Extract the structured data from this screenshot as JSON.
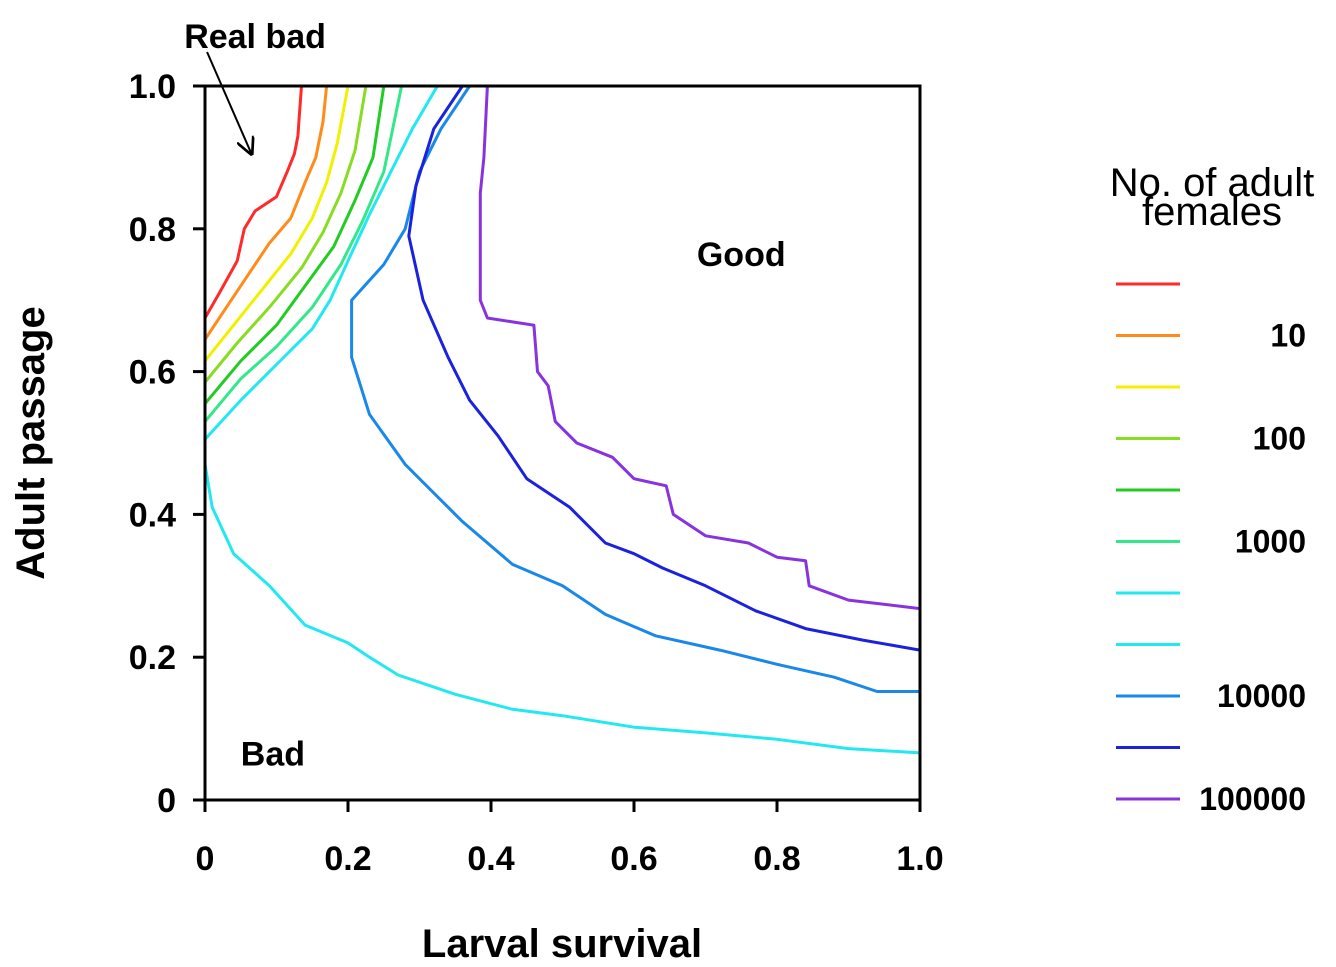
{
  "chart_data": {
    "type": "line",
    "subtype": "contour",
    "xlabel": "Larval survival",
    "ylabel": "Adult passage",
    "xlim": [
      0,
      1.0
    ],
    "ylim": [
      0,
      1.0
    ],
    "x_ticks": [
      0,
      0.2,
      0.4,
      0.6,
      0.8,
      1.0
    ],
    "x_tick_labels": [
      "0",
      "0.2",
      "0.4",
      "0.6",
      "0.8",
      "1.0"
    ],
    "y_ticks": [
      0,
      0.2,
      0.4,
      0.6,
      0.8,
      1.0
    ],
    "y_tick_labels": [
      "0",
      "0.2",
      "0.4",
      "0.6",
      "0.8",
      "1.0"
    ],
    "grid": false,
    "legend": {
      "title_line1": "No. of adult",
      "title_line2": "females",
      "placement": "right"
    },
    "annotations": [
      {
        "text": "Real bad",
        "x": 0.07,
        "y": 1.07,
        "arrow_to": [
          0.065,
          0.905
        ]
      },
      {
        "text": "Good",
        "x": 0.75,
        "y": 0.765
      },
      {
        "text": "Bad",
        "x": 0.095,
        "y": 0.065
      }
    ],
    "series": [
      {
        "label": "",
        "color": "#ff2a2a",
        "points": [
          [
            0,
            0.675
          ],
          [
            0.02,
            0.71
          ],
          [
            0.045,
            0.755
          ],
          [
            0.055,
            0.8
          ],
          [
            0.07,
            0.825
          ],
          [
            0.1,
            0.845
          ],
          [
            0.115,
            0.88
          ],
          [
            0.125,
            0.905
          ],
          [
            0.13,
            0.93
          ],
          [
            0.132,
            0.96
          ],
          [
            0.135,
            1.0
          ]
        ]
      },
      {
        "label": "10",
        "color": "#ff8c1a",
        "points": [
          [
            0,
            0.645
          ],
          [
            0.03,
            0.69
          ],
          [
            0.06,
            0.735
          ],
          [
            0.09,
            0.78
          ],
          [
            0.12,
            0.815
          ],
          [
            0.14,
            0.865
          ],
          [
            0.155,
            0.9
          ],
          [
            0.165,
            0.95
          ],
          [
            0.17,
            1.0
          ]
        ]
      },
      {
        "label": "",
        "color": "#f0f000",
        "points": [
          [
            0,
            0.615
          ],
          [
            0.04,
            0.665
          ],
          [
            0.08,
            0.715
          ],
          [
            0.12,
            0.765
          ],
          [
            0.15,
            0.815
          ],
          [
            0.17,
            0.865
          ],
          [
            0.185,
            0.92
          ],
          [
            0.2,
            1.0
          ]
        ]
      },
      {
        "label": "100",
        "color": "#88dd22",
        "points": [
          [
            0,
            0.585
          ],
          [
            0.045,
            0.64
          ],
          [
            0.09,
            0.69
          ],
          [
            0.135,
            0.745
          ],
          [
            0.165,
            0.795
          ],
          [
            0.19,
            0.85
          ],
          [
            0.21,
            0.91
          ],
          [
            0.225,
            1.0
          ]
        ]
      },
      {
        "label": "",
        "color": "#22cc22",
        "points": [
          [
            0,
            0.555
          ],
          [
            0.05,
            0.615
          ],
          [
            0.1,
            0.665
          ],
          [
            0.14,
            0.72
          ],
          [
            0.18,
            0.775
          ],
          [
            0.21,
            0.84
          ],
          [
            0.235,
            0.9
          ],
          [
            0.25,
            1.0
          ]
        ]
      },
      {
        "label": "1000",
        "color": "#33e888",
        "points": [
          [
            0,
            0.53
          ],
          [
            0.05,
            0.59
          ],
          [
            0.1,
            0.635
          ],
          [
            0.15,
            0.69
          ],
          [
            0.19,
            0.75
          ],
          [
            0.22,
            0.81
          ],
          [
            0.25,
            0.88
          ],
          [
            0.275,
            1.0
          ]
        ]
      },
      {
        "label": "",
        "color": "#22e8f0",
        "points": [
          [
            0,
            0.505
          ],
          [
            0.05,
            0.56
          ],
          [
            0.1,
            0.61
          ],
          [
            0.15,
            0.66
          ],
          [
            0.175,
            0.7
          ],
          [
            0.2,
            0.755
          ],
          [
            0.23,
            0.82
          ],
          [
            0.26,
            0.88
          ],
          [
            0.29,
            0.94
          ],
          [
            0.325,
            1.0
          ]
        ]
      },
      {
        "label": "",
        "color": "#22e8f0",
        "points": [
          [
            0,
            0.47
          ],
          [
            0.01,
            0.41
          ],
          [
            0.04,
            0.345
          ],
          [
            0.09,
            0.3
          ],
          [
            0.14,
            0.245
          ],
          [
            0.2,
            0.22
          ],
          [
            0.23,
            0.2
          ],
          [
            0.27,
            0.175
          ],
          [
            0.35,
            0.148
          ],
          [
            0.43,
            0.127
          ],
          [
            0.5,
            0.118
          ],
          [
            0.6,
            0.102
          ],
          [
            0.7,
            0.094
          ],
          [
            0.8,
            0.085
          ],
          [
            0.9,
            0.072
          ],
          [
            1.0,
            0.066
          ]
        ]
      },
      {
        "label": "10000",
        "color": "#1a88e8",
        "points": [
          [
            0.37,
            1.0
          ],
          [
            0.33,
            0.94
          ],
          [
            0.3,
            0.88
          ],
          [
            0.28,
            0.8
          ],
          [
            0.25,
            0.75
          ],
          [
            0.205,
            0.7
          ],
          [
            0.205,
            0.62
          ],
          [
            0.23,
            0.54
          ],
          [
            0.28,
            0.47
          ],
          [
            0.32,
            0.43
          ],
          [
            0.36,
            0.39
          ],
          [
            0.43,
            0.33
          ],
          [
            0.5,
            0.3
          ],
          [
            0.56,
            0.26
          ],
          [
            0.63,
            0.23
          ],
          [
            0.72,
            0.21
          ],
          [
            0.8,
            0.19
          ],
          [
            0.88,
            0.172
          ],
          [
            0.94,
            0.152
          ],
          [
            1.0,
            0.152
          ]
        ]
      },
      {
        "label": "",
        "color": "#1a22dd",
        "points": [
          [
            0.36,
            1.0
          ],
          [
            0.32,
            0.94
          ],
          [
            0.295,
            0.86
          ],
          [
            0.285,
            0.79
          ],
          [
            0.305,
            0.7
          ],
          [
            0.34,
            0.62
          ],
          [
            0.37,
            0.56
          ],
          [
            0.41,
            0.51
          ],
          [
            0.45,
            0.45
          ],
          [
            0.51,
            0.41
          ],
          [
            0.56,
            0.36
          ],
          [
            0.6,
            0.345
          ],
          [
            0.64,
            0.325
          ],
          [
            0.7,
            0.3
          ],
          [
            0.77,
            0.265
          ],
          [
            0.84,
            0.24
          ],
          [
            0.92,
            0.224
          ],
          [
            1.0,
            0.21
          ]
        ]
      },
      {
        "label": "100000",
        "color": "#8833dd",
        "points": [
          [
            0.395,
            1.0
          ],
          [
            0.39,
            0.9
          ],
          [
            0.385,
            0.85
          ],
          [
            0.385,
            0.7
          ],
          [
            0.395,
            0.675
          ],
          [
            0.46,
            0.665
          ],
          [
            0.465,
            0.6
          ],
          [
            0.48,
            0.58
          ],
          [
            0.49,
            0.53
          ],
          [
            0.52,
            0.5
          ],
          [
            0.57,
            0.48
          ],
          [
            0.6,
            0.45
          ],
          [
            0.645,
            0.44
          ],
          [
            0.655,
            0.4
          ],
          [
            0.7,
            0.37
          ],
          [
            0.76,
            0.36
          ],
          [
            0.8,
            0.34
          ],
          [
            0.84,
            0.335
          ],
          [
            0.845,
            0.3
          ],
          [
            0.9,
            0.28
          ],
          [
            1.0,
            0.268
          ]
        ]
      }
    ]
  }
}
